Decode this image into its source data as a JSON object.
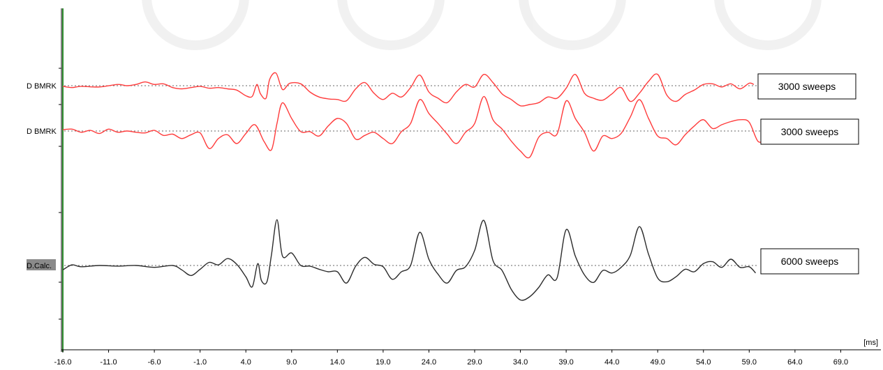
{
  "chart_data": {
    "type": "line",
    "x_unit": "[ms]",
    "xlim": [
      -16.0,
      74.0
    ],
    "x_ticks": [
      "-16.0",
      "-11.0",
      "-6.0",
      "-1.0",
      "4.0",
      "9.0",
      "14.0",
      "19.0",
      "24.0",
      "29.0",
      "34.0",
      "39.0",
      "44.0",
      "49.0",
      "54.0",
      "59.0",
      "64.0",
      "69.0"
    ],
    "grid": false,
    "colors": {
      "trace1": "#ff3b3b",
      "trace2": "#ff3b3b",
      "trace3": "#2b2b2b",
      "axis": "#000000",
      "marker": "#2e8b2e",
      "baseline": "#666666",
      "label_highlight": "#8a8a8a"
    },
    "series": [
      {
        "label": "D BMRK",
        "x_end": 59.5,
        "points": [
          [
            -16,
            -1
          ],
          [
            -15,
            -3
          ],
          [
            -14,
            -1
          ],
          [
            -12,
            -2
          ],
          [
            -10,
            2
          ],
          [
            -9,
            0
          ],
          [
            -8,
            2
          ],
          [
            -7,
            6
          ],
          [
            -6,
            2
          ],
          [
            -5,
            3
          ],
          [
            -4,
            -3
          ],
          [
            -3,
            -5
          ],
          [
            -2,
            -3
          ],
          [
            -1,
            -1
          ],
          [
            0,
            -4
          ],
          [
            1,
            -3
          ],
          [
            2,
            -5
          ],
          [
            3,
            -7
          ],
          [
            4,
            -16
          ],
          [
            4.7,
            -17
          ],
          [
            5.2,
            2
          ],
          [
            5.6,
            -13
          ],
          [
            6.2,
            -20
          ],
          [
            6.6,
            10
          ],
          [
            7.3,
            20
          ],
          [
            8,
            -6
          ],
          [
            8.8,
            4
          ],
          [
            10,
            3
          ],
          [
            11,
            -10
          ],
          [
            12,
            -18
          ],
          [
            13,
            -21
          ],
          [
            14,
            -22
          ],
          [
            15,
            -24
          ],
          [
            16,
            -5
          ],
          [
            17,
            5
          ],
          [
            18,
            -12
          ],
          [
            19,
            -22
          ],
          [
            20,
            -12
          ],
          [
            21,
            -18
          ],
          [
            22,
            -3
          ],
          [
            23,
            17
          ],
          [
            24,
            -10
          ],
          [
            25,
            -20
          ],
          [
            26,
            -27
          ],
          [
            27,
            -10
          ],
          [
            28,
            2
          ],
          [
            29,
            -2
          ],
          [
            30,
            18
          ],
          [
            31,
            5
          ],
          [
            32,
            -13
          ],
          [
            33,
            -22
          ],
          [
            34,
            -32
          ],
          [
            35,
            -30
          ],
          [
            36,
            -27
          ],
          [
            37,
            -18
          ],
          [
            38,
            -20
          ],
          [
            39,
            -4
          ],
          [
            40,
            18
          ],
          [
            41,
            -12
          ],
          [
            42,
            -20
          ],
          [
            43,
            -23
          ],
          [
            44,
            -13
          ],
          [
            45,
            -3
          ],
          [
            46,
            -25
          ],
          [
            47,
            -12
          ],
          [
            48,
            7
          ],
          [
            49,
            18
          ],
          [
            50,
            -15
          ],
          [
            51,
            -25
          ],
          [
            52,
            -14
          ],
          [
            53,
            -7
          ],
          [
            54,
            2
          ],
          [
            55,
            3
          ],
          [
            56,
            -2
          ],
          [
            57,
            3
          ],
          [
            58,
            -5
          ],
          [
            59,
            4
          ],
          [
            59.5,
            2
          ]
        ]
      },
      {
        "label": "D BMRK",
        "x_end": 62.5,
        "points": [
          [
            -16,
            2
          ],
          [
            -15,
            3
          ],
          [
            -14,
            -2
          ],
          [
            -13,
            1
          ],
          [
            -12,
            -4
          ],
          [
            -11,
            3
          ],
          [
            -10,
            -2
          ],
          [
            -9,
            0
          ],
          [
            -8,
            -2
          ],
          [
            -7,
            -3
          ],
          [
            -6,
            1
          ],
          [
            -5,
            -7
          ],
          [
            -4,
            -5
          ],
          [
            -3,
            -12
          ],
          [
            -2,
            -6
          ],
          [
            -1,
            -3
          ],
          [
            0,
            -28
          ],
          [
            1,
            -12
          ],
          [
            2,
            -6
          ],
          [
            3,
            -20
          ],
          [
            4,
            -4
          ],
          [
            5,
            10
          ],
          [
            6,
            -17
          ],
          [
            6.8,
            -30
          ],
          [
            7.4,
            12
          ],
          [
            8,
            45
          ],
          [
            9,
            20
          ],
          [
            10,
            -1
          ],
          [
            11,
            -1
          ],
          [
            12,
            -8
          ],
          [
            13,
            8
          ],
          [
            14,
            20
          ],
          [
            15,
            12
          ],
          [
            16,
            -13
          ],
          [
            17,
            -7
          ],
          [
            18,
            -2
          ],
          [
            19,
            -12
          ],
          [
            20,
            -20
          ],
          [
            21,
            -1
          ],
          [
            22,
            12
          ],
          [
            23,
            50
          ],
          [
            24,
            28
          ],
          [
            25,
            12
          ],
          [
            26,
            -5
          ],
          [
            27,
            -20
          ],
          [
            28,
            -2
          ],
          [
            29,
            12
          ],
          [
            30,
            55
          ],
          [
            31,
            18
          ],
          [
            32,
            3
          ],
          [
            33,
            -16
          ],
          [
            34,
            -32
          ],
          [
            35,
            -42
          ],
          [
            36,
            -10
          ],
          [
            37,
            -2
          ],
          [
            38,
            -5
          ],
          [
            39,
            48
          ],
          [
            40,
            20
          ],
          [
            41,
            -2
          ],
          [
            42,
            -32
          ],
          [
            43,
            -8
          ],
          [
            44,
            -12
          ],
          [
            45,
            -4
          ],
          [
            46,
            22
          ],
          [
            47,
            50
          ],
          [
            48,
            20
          ],
          [
            49,
            -8
          ],
          [
            50,
            -12
          ],
          [
            51,
            -22
          ],
          [
            52,
            -6
          ],
          [
            53,
            8
          ],
          [
            54,
            18
          ],
          [
            55,
            4
          ],
          [
            56,
            10
          ],
          [
            57,
            15
          ],
          [
            58,
            18
          ],
          [
            59,
            14
          ],
          [
            60,
            -17
          ],
          [
            61,
            -9
          ],
          [
            62,
            3
          ],
          [
            62.5,
            12
          ]
        ]
      },
      {
        "label": "D.Calc.",
        "x_end": 59.7,
        "points": [
          [
            -16,
            -7
          ],
          [
            -15,
            1
          ],
          [
            -14,
            -2
          ],
          [
            -12,
            0
          ],
          [
            -10,
            -1
          ],
          [
            -8,
            0
          ],
          [
            -6,
            -3
          ],
          [
            -4,
            0
          ],
          [
            -3,
            -7
          ],
          [
            -2,
            -16
          ],
          [
            -1,
            -6
          ],
          [
            0,
            5
          ],
          [
            1,
            1
          ],
          [
            2,
            11
          ],
          [
            3,
            2
          ],
          [
            4,
            -18
          ],
          [
            4.7,
            -34
          ],
          [
            5.3,
            3
          ],
          [
            5.7,
            -24
          ],
          [
            6.3,
            -26
          ],
          [
            6.8,
            17
          ],
          [
            7.4,
            73
          ],
          [
            8,
            15
          ],
          [
            9,
            20
          ],
          [
            10,
            0
          ],
          [
            11,
            -1
          ],
          [
            12,
            -6
          ],
          [
            13,
            -10
          ],
          [
            14,
            -10
          ],
          [
            15,
            -28
          ],
          [
            16,
            -1
          ],
          [
            17,
            13
          ],
          [
            18,
            2
          ],
          [
            19,
            -2
          ],
          [
            20,
            -22
          ],
          [
            21,
            -10
          ],
          [
            22,
            0
          ],
          [
            23,
            53
          ],
          [
            24,
            10
          ],
          [
            25,
            -14
          ],
          [
            26,
            -28
          ],
          [
            27,
            -8
          ],
          [
            28,
            -2
          ],
          [
            29,
            24
          ],
          [
            30,
            72
          ],
          [
            31,
            8
          ],
          [
            32,
            -8
          ],
          [
            33,
            -38
          ],
          [
            34,
            -55
          ],
          [
            35,
            -50
          ],
          [
            36,
            -35
          ],
          [
            37,
            -15
          ],
          [
            38,
            -20
          ],
          [
            39,
            57
          ],
          [
            40,
            15
          ],
          [
            41,
            -15
          ],
          [
            42,
            -27
          ],
          [
            43,
            -8
          ],
          [
            44,
            -12
          ],
          [
            45,
            -3
          ],
          [
            46,
            16
          ],
          [
            47,
            62
          ],
          [
            48,
            18
          ],
          [
            49,
            -20
          ],
          [
            50,
            -26
          ],
          [
            51,
            -18
          ],
          [
            52,
            -6
          ],
          [
            53,
            -10
          ],
          [
            54,
            3
          ],
          [
            55,
            6
          ],
          [
            56,
            -3
          ],
          [
            57,
            10
          ],
          [
            58,
            -3
          ],
          [
            59,
            -2
          ],
          [
            59.7,
            -12
          ]
        ]
      }
    ],
    "annotations": [
      "3000 sweeps",
      "3000 sweeps",
      "6000 sweeps"
    ]
  }
}
